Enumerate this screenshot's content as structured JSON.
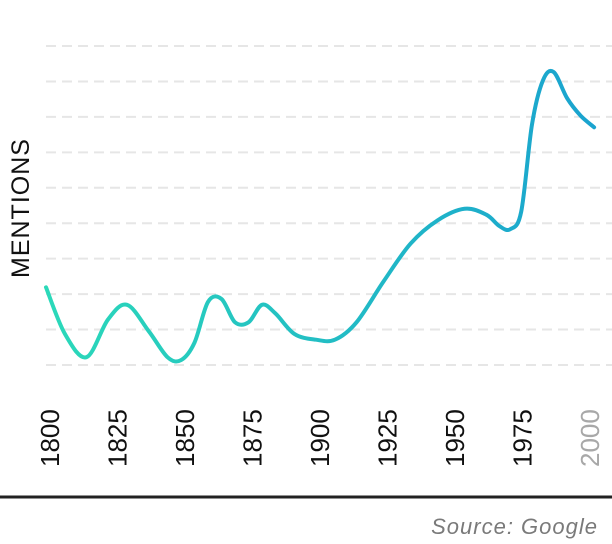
{
  "chart_data": {
    "type": "line",
    "title": "",
    "xlabel": "",
    "ylabel": "MENTIONS",
    "xlim": [
      1800,
      2005
    ],
    "ylim": [
      0,
      100
    ],
    "x_ticks": [
      {
        "value": 1800,
        "label": "1800",
        "muted": false
      },
      {
        "value": 1825,
        "label": "1825",
        "muted": false
      },
      {
        "value": 1850,
        "label": "1850",
        "muted": false
      },
      {
        "value": 1875,
        "label": "1875",
        "muted": false
      },
      {
        "value": 1900,
        "label": "1900",
        "muted": false
      },
      {
        "value": 1925,
        "label": "1925",
        "muted": false
      },
      {
        "value": 1950,
        "label": "1950",
        "muted": false
      },
      {
        "value": 1975,
        "label": "1975",
        "muted": false
      },
      {
        "value": 2000,
        "label": "2000",
        "muted": true
      }
    ],
    "grid": true,
    "gridlines_y": [
      0,
      10,
      20,
      30,
      40,
      50,
      60,
      70,
      80,
      90
    ],
    "colors": {
      "line_start": "#2bd9b9",
      "line_end": "#1aa3cf",
      "grid": "#e6e6e6",
      "baseline": "#222222"
    },
    "series": [
      {
        "x": [
          1800,
          1807,
          1815,
          1823,
          1830,
          1838,
          1845,
          1850,
          1855,
          1860,
          1865,
          1870,
          1875,
          1880,
          1885,
          1892,
          1900,
          1907,
          1915,
          1925,
          1935,
          1945,
          1955,
          1963,
          1968,
          1972,
          1976,
          1980,
          1984,
          1988,
          1993,
          1998,
          2003
        ],
        "y": [
          26,
          10,
          2,
          15,
          20,
          11,
          2,
          1,
          7,
          21,
          22,
          14,
          14,
          20,
          17,
          10,
          8,
          8,
          14,
          28,
          41,
          49,
          53,
          51,
          47,
          46,
          52,
          82,
          97,
          100,
          91,
          85,
          81
        ]
      }
    ]
  },
  "source": "Source: Google"
}
